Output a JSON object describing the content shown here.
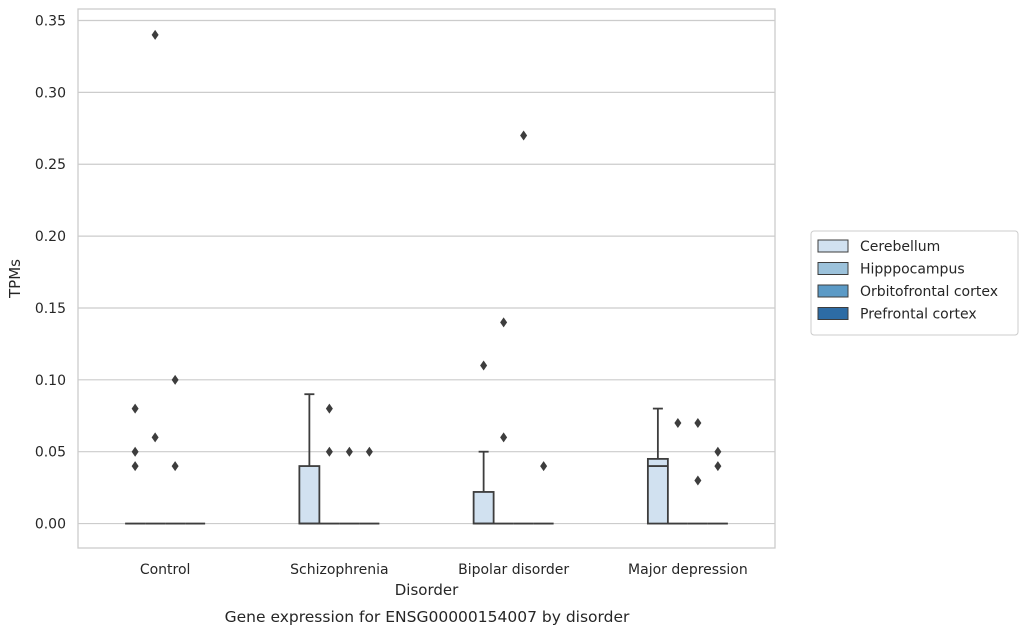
{
  "chart_data": {
    "type": "box",
    "title": "",
    "caption": "Gene expression for ENSG00000154007 by disorder",
    "xlabel": "Disorder",
    "ylabel": "TPMs",
    "ylim": [
      -0.017,
      0.358
    ],
    "y_ticks": [
      0.0,
      0.05,
      0.1,
      0.15,
      0.2,
      0.25,
      0.3,
      0.35
    ],
    "y_tick_labels": [
      "0.00",
      "0.05",
      "0.10",
      "0.15",
      "0.20",
      "0.25",
      "0.30",
      "0.35"
    ],
    "grid": true,
    "legend_position": "right",
    "categories": [
      "Control",
      "Schizophrenia",
      "Bipolar disorder",
      "Major depression"
    ],
    "series": [
      {
        "name": "Cerebellum",
        "color": "#d1e1f0",
        "boxes": [
          {
            "q1": 0,
            "median": 0,
            "q3": 0,
            "whisker_low": 0,
            "whisker_high": 0,
            "outliers": [
              0.04,
              0.05,
              0.08
            ]
          },
          {
            "q1": 0,
            "median": 0,
            "q3": 0.04,
            "whisker_low": 0,
            "whisker_high": 0.09,
            "outliers": []
          },
          {
            "q1": 0,
            "median": 0,
            "q3": 0.022,
            "whisker_low": 0,
            "whisker_high": 0.05,
            "outliers": [
              0.11
            ]
          },
          {
            "q1": 0,
            "median": 0.04,
            "q3": 0.045,
            "whisker_low": 0,
            "whisker_high": 0.08,
            "outliers": []
          }
        ]
      },
      {
        "name": "Hipppocampus",
        "color": "#9cc2db",
        "boxes": [
          {
            "q1": 0,
            "median": 0,
            "q3": 0,
            "whisker_low": 0,
            "whisker_high": 0,
            "outliers": [
              0.34,
              0.06
            ]
          },
          {
            "q1": 0,
            "median": 0,
            "q3": 0,
            "whisker_low": 0,
            "whisker_high": 0,
            "outliers": [
              0.08,
              0.05
            ]
          },
          {
            "q1": 0,
            "median": 0,
            "q3": 0,
            "whisker_low": 0,
            "whisker_high": 0,
            "outliers": [
              0.14,
              0.06
            ]
          },
          {
            "q1": 0,
            "median": 0,
            "q3": 0,
            "whisker_low": 0,
            "whisker_high": 0,
            "outliers": [
              0.07
            ]
          }
        ]
      },
      {
        "name": "Orbitofrontal cortex",
        "color": "#5b9ac6",
        "boxes": [
          {
            "q1": 0,
            "median": 0,
            "q3": 0,
            "whisker_low": 0,
            "whisker_high": 0,
            "outliers": [
              0.1,
              0.04
            ]
          },
          {
            "q1": 0,
            "median": 0,
            "q3": 0,
            "whisker_low": 0,
            "whisker_high": 0,
            "outliers": [
              0.05
            ]
          },
          {
            "q1": 0,
            "median": 0,
            "q3": 0,
            "whisker_low": 0,
            "whisker_high": 0,
            "outliers": [
              0.27
            ]
          },
          {
            "q1": 0,
            "median": 0,
            "q3": 0,
            "whisker_low": 0,
            "whisker_high": 0,
            "outliers": [
              0.07,
              0.03
            ]
          }
        ]
      },
      {
        "name": "Prefrontal cortex",
        "color": "#2d6ca5",
        "boxes": [
          {
            "q1": 0,
            "median": 0,
            "q3": 0,
            "whisker_low": 0,
            "whisker_high": 0,
            "outliers": []
          },
          {
            "q1": 0,
            "median": 0,
            "q3": 0,
            "whisker_low": 0,
            "whisker_high": 0,
            "outliers": [
              0.05
            ]
          },
          {
            "q1": 0,
            "median": 0,
            "q3": 0,
            "whisker_low": 0,
            "whisker_high": 0,
            "outliers": [
              0.04
            ]
          },
          {
            "q1": 0,
            "median": 0,
            "q3": 0,
            "whisker_low": 0,
            "whisker_high": 0,
            "outliers": [
              0.05,
              0.04
            ]
          }
        ]
      }
    ]
  }
}
